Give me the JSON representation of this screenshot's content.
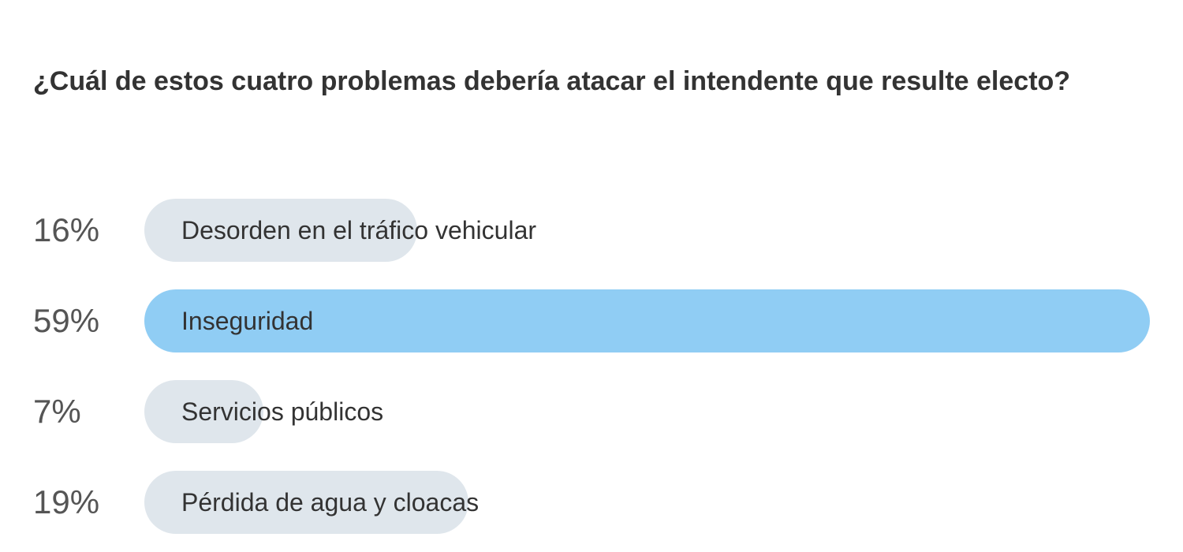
{
  "chart_data": {
    "type": "bar",
    "orientation": "horizontal",
    "title": "¿Cuál de estos cuatro problemas debería atacar el intendente que resulte electo?",
    "categories": [
      "Desorden en el tráfico vehicular",
      "Inseguridad",
      "Servicios públicos",
      "Pérdida de agua y cloacas"
    ],
    "values": [
      16,
      59,
      7,
      19
    ],
    "value_labels": [
      "16%",
      "59%",
      "7%",
      "19%"
    ],
    "colors": [
      "#dfe6ec",
      "#90cdf4",
      "#dfe6ec",
      "#dfe6ec"
    ]
  }
}
